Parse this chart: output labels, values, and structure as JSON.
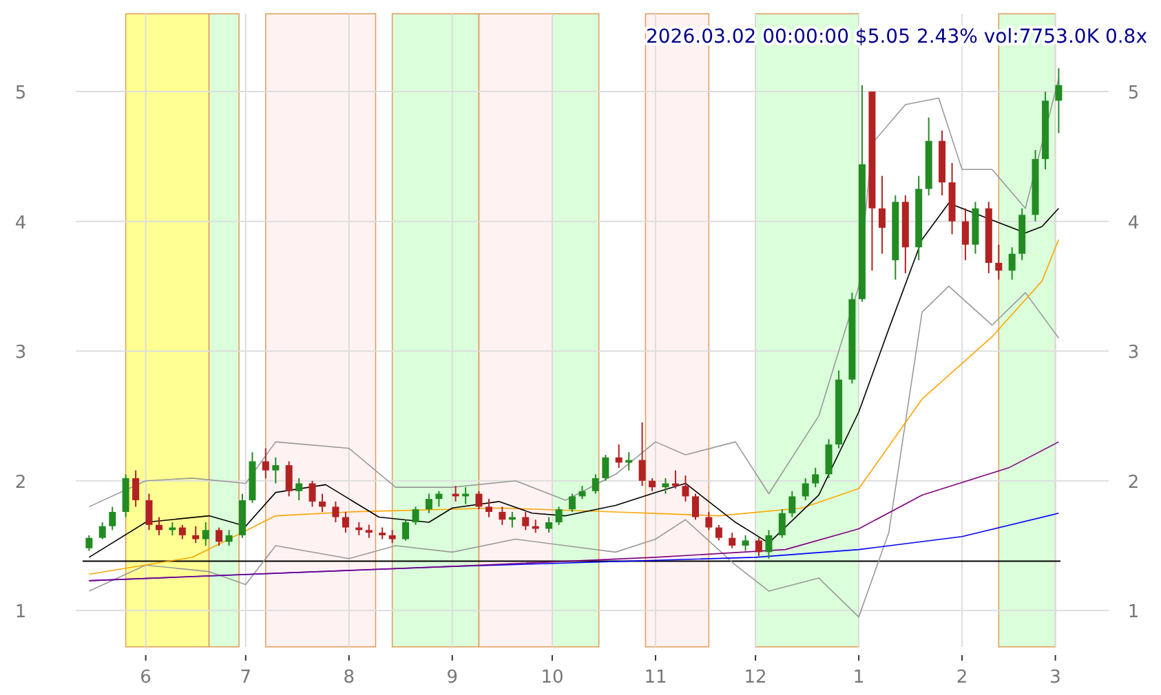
{
  "chart_data": {
    "type": "candlestick",
    "title": "2026.03.02 00:00:00 $5.05 2.43% vol:7753.0K 0.8x",
    "x": [
      "2025-05-15",
      "2025-05-19",
      "2025-05-22",
      "2025-05-26",
      "2025-05-29",
      "2025-06-02",
      "2025-06-05",
      "2025-06-09",
      "2025-06-12",
      "2025-06-16",
      "2025-06-19",
      "2025-06-23",
      "2025-06-26",
      "2025-06-30",
      "2025-07-03",
      "2025-07-07",
      "2025-07-10",
      "2025-07-14",
      "2025-07-17",
      "2025-07-21",
      "2025-07-24",
      "2025-07-28",
      "2025-07-31",
      "2025-08-04",
      "2025-08-07",
      "2025-08-11",
      "2025-08-14",
      "2025-08-18",
      "2025-08-21",
      "2025-08-25",
      "2025-08-28",
      "2025-09-02",
      "2025-09-05",
      "2025-09-09",
      "2025-09-12",
      "2025-09-16",
      "2025-09-19",
      "2025-09-23",
      "2025-09-26",
      "2025-09-30",
      "2025-10-03",
      "2025-10-07",
      "2025-10-10",
      "2025-10-14",
      "2025-10-17",
      "2025-10-21",
      "2025-10-24",
      "2025-10-28",
      "2025-10-31",
      "2025-11-04",
      "2025-11-07",
      "2025-11-10",
      "2025-11-13",
      "2025-11-17",
      "2025-11-20",
      "2025-11-24",
      "2025-11-28",
      "2025-12-02",
      "2025-12-05",
      "2025-12-09",
      "2025-12-12",
      "2025-12-16",
      "2025-12-19",
      "2025-12-23",
      "2025-12-26",
      "2025-12-30",
      "2026-01-02",
      "2026-01-05",
      "2026-01-08",
      "2026-01-12",
      "2026-01-15",
      "2026-01-19",
      "2026-01-22",
      "2026-01-26",
      "2026-01-29",
      "2026-02-02",
      "2026-02-05",
      "2026-02-09",
      "2026-02-12",
      "2026-02-16",
      "2026-02-19",
      "2026-02-23",
      "2026-02-26",
      "2026-03-02"
    ],
    "ohlc": [
      [
        1.48,
        1.58,
        1.46,
        1.56
      ],
      [
        1.56,
        1.68,
        1.55,
        1.65
      ],
      [
        1.65,
        1.8,
        1.62,
        1.76
      ],
      [
        1.76,
        2.05,
        1.72,
        2.02
      ],
      [
        2.02,
        2.08,
        1.8,
        1.85
      ],
      [
        1.85,
        1.9,
        1.62,
        1.66
      ],
      [
        1.66,
        1.72,
        1.58,
        1.62
      ],
      [
        1.62,
        1.68,
        1.58,
        1.64
      ],
      [
        1.64,
        1.66,
        1.55,
        1.58
      ],
      [
        1.58,
        1.65,
        1.52,
        1.55
      ],
      [
        1.55,
        1.68,
        1.5,
        1.62
      ],
      [
        1.62,
        1.64,
        1.5,
        1.53
      ],
      [
        1.53,
        1.62,
        1.5,
        1.58
      ],
      [
        1.58,
        1.9,
        1.56,
        1.85
      ],
      [
        1.85,
        2.22,
        1.83,
        2.15
      ],
      [
        2.15,
        2.25,
        2.02,
        2.08
      ],
      [
        2.08,
        2.18,
        1.98,
        2.12
      ],
      [
        2.12,
        2.15,
        1.88,
        1.92
      ],
      [
        1.92,
        2.02,
        1.85,
        1.98
      ],
      [
        1.98,
        2.0,
        1.8,
        1.84
      ],
      [
        1.84,
        1.9,
        1.76,
        1.8
      ],
      [
        1.8,
        1.84,
        1.68,
        1.72
      ],
      [
        1.72,
        1.76,
        1.6,
        1.64
      ],
      [
        1.64,
        1.68,
        1.58,
        1.62
      ],
      [
        1.62,
        1.66,
        1.56,
        1.6
      ],
      [
        1.6,
        1.64,
        1.55,
        1.58
      ],
      [
        1.58,
        1.62,
        1.52,
        1.55
      ],
      [
        1.55,
        1.7,
        1.54,
        1.68
      ],
      [
        1.68,
        1.8,
        1.66,
        1.78
      ],
      [
        1.78,
        1.9,
        1.75,
        1.86
      ],
      [
        1.86,
        1.92,
        1.8,
        1.9
      ],
      [
        1.9,
        1.96,
        1.84,
        1.88
      ],
      [
        1.88,
        1.95,
        1.82,
        1.9
      ],
      [
        1.9,
        1.92,
        1.78,
        1.8
      ],
      [
        1.8,
        1.86,
        1.72,
        1.76
      ],
      [
        1.76,
        1.8,
        1.66,
        1.7
      ],
      [
        1.7,
        1.76,
        1.64,
        1.72
      ],
      [
        1.72,
        1.76,
        1.62,
        1.65
      ],
      [
        1.65,
        1.7,
        1.6,
        1.63
      ],
      [
        1.63,
        1.72,
        1.6,
        1.68
      ],
      [
        1.68,
        1.8,
        1.66,
        1.78
      ],
      [
        1.78,
        1.9,
        1.76,
        1.88
      ],
      [
        1.88,
        1.96,
        1.86,
        1.92
      ],
      [
        1.92,
        2.05,
        1.9,
        2.02
      ],
      [
        2.02,
        2.2,
        2.0,
        2.18
      ],
      [
        2.18,
        2.28,
        2.1,
        2.14
      ],
      [
        2.14,
        2.22,
        2.08,
        2.16
      ],
      [
        2.16,
        2.45,
        1.96,
        2.0
      ],
      [
        2.0,
        2.02,
        1.92,
        1.95
      ],
      [
        1.95,
        2.02,
        1.9,
        1.98
      ],
      [
        1.98,
        2.08,
        1.94,
        1.96
      ],
      [
        1.96,
        2.04,
        1.84,
        1.88
      ],
      [
        1.88,
        1.9,
        1.7,
        1.72
      ],
      [
        1.72,
        1.76,
        1.62,
        1.64
      ],
      [
        1.64,
        1.66,
        1.54,
        1.56
      ],
      [
        1.56,
        1.6,
        1.48,
        1.5
      ],
      [
        1.5,
        1.58,
        1.46,
        1.54
      ],
      [
        1.54,
        1.56,
        1.42,
        1.45
      ],
      [
        1.45,
        1.62,
        1.4,
        1.58
      ],
      [
        1.58,
        1.78,
        1.56,
        1.75
      ],
      [
        1.75,
        1.92,
        1.72,
        1.88
      ],
      [
        1.88,
        2.02,
        1.85,
        1.98
      ],
      [
        1.98,
        2.1,
        1.95,
        2.05
      ],
      [
        2.05,
        2.32,
        2.02,
        2.28
      ],
      [
        2.28,
        2.85,
        2.25,
        2.78
      ],
      [
        2.78,
        3.45,
        2.75,
        3.4
      ],
      [
        3.4,
        5.05,
        3.38,
        4.44
      ],
      [
        5.0,
        5.0,
        3.62,
        4.1
      ],
      [
        4.1,
        4.35,
        3.75,
        3.95
      ],
      [
        3.7,
        4.2,
        3.55,
        4.15
      ],
      [
        4.15,
        4.2,
        3.6,
        3.8
      ],
      [
        3.8,
        4.35,
        3.7,
        4.25
      ],
      [
        4.25,
        4.8,
        4.2,
        4.62
      ],
      [
        4.62,
        4.7,
        4.2,
        4.3
      ],
      [
        4.3,
        4.45,
        3.9,
        4.0
      ],
      [
        4.0,
        4.1,
        3.7,
        3.82
      ],
      [
        3.82,
        4.15,
        3.75,
        4.1
      ],
      [
        4.1,
        4.15,
        3.6,
        3.68
      ],
      [
        3.68,
        3.82,
        3.55,
        3.62
      ],
      [
        3.62,
        3.8,
        3.55,
        3.75
      ],
      [
        3.75,
        4.1,
        3.7,
        4.05
      ],
      [
        4.05,
        4.55,
        4.0,
        4.48
      ],
      [
        4.48,
        5.0,
        4.4,
        4.93
      ],
      [
        4.93,
        5.18,
        4.68,
        5.05
      ]
    ],
    "series": [
      {
        "type": "line",
        "color": "#999999",
        "x": [
          "2025-05-15",
          "2025-06-01",
          "2025-06-15",
          "2025-07-01",
          "2025-07-10",
          "2025-08-01",
          "2025-08-15",
          "2025-09-01",
          "2025-09-20",
          "2025-10-05",
          "2025-10-20",
          "2025-11-01",
          "2025-11-10",
          "2025-11-25",
          "2025-12-05",
          "2025-12-20",
          "2026-01-01",
          "2026-01-05",
          "2026-01-15",
          "2026-01-25",
          "2026-02-01",
          "2026-02-10",
          "2026-02-20",
          "2026-03-02"
        ],
        "values": [
          1.8,
          2.0,
          2.02,
          1.98,
          2.3,
          2.25,
          1.95,
          1.95,
          2.0,
          1.85,
          2.05,
          2.3,
          2.2,
          2.3,
          1.9,
          2.5,
          3.5,
          4.6,
          4.9,
          4.95,
          4.4,
          4.4,
          4.1,
          5.1
        ]
      },
      {
        "type": "line",
        "color": "#999999",
        "x": [
          "2025-05-15",
          "2025-06-01",
          "2025-06-20",
          "2025-07-01",
          "2025-07-10",
          "2025-08-01",
          "2025-08-15",
          "2025-09-01",
          "2025-09-20",
          "2025-10-05",
          "2025-10-20",
          "2025-11-01",
          "2025-11-10",
          "2025-11-25",
          "2025-12-05",
          "2025-12-20",
          "2026-01-01",
          "2026-01-10",
          "2026-01-20",
          "2026-01-28",
          "2026-02-10",
          "2026-02-20",
          "2026-03-02"
        ],
        "values": [
          1.15,
          1.35,
          1.3,
          1.2,
          1.5,
          1.4,
          1.5,
          1.45,
          1.55,
          1.5,
          1.45,
          1.55,
          1.7,
          1.35,
          1.15,
          1.25,
          0.95,
          1.6,
          3.3,
          3.5,
          3.2,
          3.45,
          3.1
        ]
      },
      {
        "type": "line",
        "color": "#0000ff",
        "x": [
          "2025-05-15",
          "2025-09-01",
          "2025-12-01",
          "2026-01-01",
          "2026-02-01",
          "2026-03-02"
        ],
        "values": [
          1.23,
          1.34,
          1.41,
          1.47,
          1.57,
          1.75
        ]
      },
      {
        "type": "line",
        "color": "#800080",
        "x": [
          "2025-05-15",
          "2025-07-02",
          "2025-09-01",
          "2025-11-01",
          "2025-12-10",
          "2026-01-01",
          "2026-01-20",
          "2026-02-15",
          "2026-03-02"
        ],
        "values": [
          1.23,
          1.28,
          1.34,
          1.41,
          1.47,
          1.63,
          1.89,
          2.1,
          2.3
        ]
      },
      {
        "type": "line",
        "color": "#ffa500",
        "x": [
          "2025-05-15",
          "2025-06-15",
          "2025-07-10",
          "2025-08-01",
          "2025-09-15",
          "2025-10-20",
          "2025-11-20",
          "2025-12-15",
          "2026-01-01",
          "2026-01-20",
          "2026-02-10",
          "2026-02-25",
          "2026-03-02"
        ],
        "values": [
          1.28,
          1.41,
          1.73,
          1.76,
          1.79,
          1.76,
          1.73,
          1.79,
          1.94,
          2.63,
          3.11,
          3.54,
          3.86
        ]
      },
      {
        "type": "line",
        "color": "#000000",
        "x": [
          "2025-05-15",
          "2025-06-01",
          "2025-06-20",
          "2025-07-01",
          "2025-07-10",
          "2025-07-25",
          "2025-08-10",
          "2025-08-25",
          "2025-09-01",
          "2025-09-15",
          "2025-09-25",
          "2025-10-05",
          "2025-10-20",
          "2025-11-01",
          "2025-11-10",
          "2025-11-25",
          "2025-12-05",
          "2025-12-20",
          "2026-01-01",
          "2026-01-10",
          "2026-01-20",
          "2026-01-28",
          "2026-02-10",
          "2026-02-20",
          "2026-02-25",
          "2026-03-02"
        ],
        "values": [
          1.41,
          1.68,
          1.73,
          1.65,
          1.91,
          1.97,
          1.72,
          1.68,
          1.79,
          1.84,
          1.75,
          1.73,
          1.81,
          1.91,
          1.98,
          1.68,
          1.52,
          1.89,
          2.53,
          3.17,
          3.86,
          4.14,
          4.01,
          3.91,
          3.96,
          4.1
        ]
      }
    ],
    "bands": [
      {
        "axis": "x",
        "from": "2025-05-26",
        "to": "2025-06-20",
        "color": "#ffff66"
      },
      {
        "axis": "x",
        "from": "2025-06-20",
        "to": "2025-06-29",
        "color": "#ccffcc"
      },
      {
        "axis": "x",
        "from": "2025-07-07",
        "to": "2025-08-09",
        "color": "#ffecec"
      },
      {
        "axis": "x",
        "from": "2025-08-14",
        "to": "2025-09-09",
        "color": "#ccffcc"
      },
      {
        "axis": "x",
        "from": "2025-09-09",
        "to": "2025-10-01",
        "color": "#ffecec"
      },
      {
        "axis": "x",
        "from": "2025-10-01",
        "to": "2025-10-15",
        "color": "#ccffcc"
      },
      {
        "axis": "x",
        "from": "2025-10-29",
        "to": "2025-11-17",
        "color": "#ffecec"
      },
      {
        "axis": "x",
        "from": "2025-12-01",
        "to": "2026-01-01",
        "color": "#ccffcc"
      },
      {
        "axis": "x",
        "from": "2026-02-12",
        "to": "2026-03-01",
        "color": "#ccffcc"
      }
    ],
    "ref_lines": [
      {
        "axis": "y",
        "value": 1.38,
        "color": "#000000"
      }
    ],
    "xlim": [
      "2025-05-11",
      "2026-03-17"
    ],
    "xticks": [
      {
        "value": "2025-06-01",
        "label": "6"
      },
      {
        "value": "2025-07-01",
        "label": "7"
      },
      {
        "value": "2025-08-01",
        "label": "8"
      },
      {
        "value": "2025-09-01",
        "label": "9"
      },
      {
        "value": "2025-10-01",
        "label": "10"
      },
      {
        "value": "2025-11-01",
        "label": "11"
      },
      {
        "value": "2025-12-01",
        "label": "12"
      },
      {
        "value": "2026-01-01",
        "label": "1"
      },
      {
        "value": "2026-02-01",
        "label": "2"
      },
      {
        "value": "2026-03-01",
        "label": "3"
      }
    ],
    "ylim": [
      0.72,
      5.6
    ],
    "yticks": [
      1,
      2,
      3,
      4,
      5
    ],
    "y2lim": [
      0.72,
      5.6
    ],
    "y2ticks": [
      1,
      2,
      3,
      4,
      5
    ],
    "grid": true,
    "marker": "none",
    "line_style": "solid"
  }
}
